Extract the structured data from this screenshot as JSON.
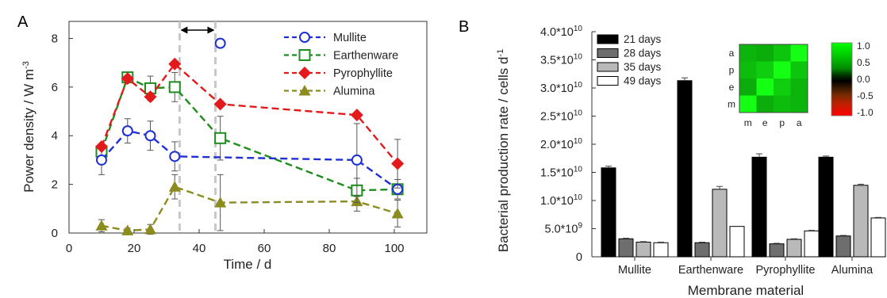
{
  "figure": {
    "panel_a_letter": "A",
    "panel_b_letter": "B"
  },
  "chart_data": [
    {
      "type": "line",
      "panel": "A",
      "xlabel": "Time / d",
      "ylabel_main": "Power density / W m",
      "ylabel_exp": "-3",
      "xlim": [
        0,
        110
      ],
      "ylim": [
        0,
        8.7
      ],
      "xticks": [
        "0",
        "20",
        "40",
        "60",
        "80",
        "100"
      ],
      "yticks": [
        "0",
        "2",
        "4",
        "6",
        "8"
      ],
      "vlines_x": [
        34,
        45
      ],
      "legend_position": "top-right",
      "series": [
        {
          "name": "Mullite",
          "color": "#1f2fd6",
          "marker": "circle",
          "x": [
            10,
            18,
            25,
            32.5,
            46.5,
            88.5,
            101
          ],
          "y": [
            3.0,
            4.2,
            4.0,
            3.15,
            7.8,
            3.0,
            1.8
          ],
          "err": [
            0.6,
            0.5,
            0.6,
            0.6,
            0,
            1.5,
            0.2
          ],
          "connect_to": [
            0,
            1,
            2,
            3,
            null,
            5,
            6
          ],
          "path_x": [
            10,
            18,
            25,
            32.5,
            88.5,
            101
          ],
          "path_y": [
            3.0,
            4.2,
            4.0,
            3.15,
            3.0,
            1.8
          ]
        },
        {
          "name": "Earthenware",
          "color": "#1e8c1e",
          "marker": "square",
          "x": [
            10,
            18,
            25,
            32.5,
            46.5,
            88.5,
            101
          ],
          "y": [
            3.35,
            6.4,
            5.95,
            6.0,
            3.9,
            1.75,
            1.8
          ],
          "err": [
            0.3,
            0.2,
            0.5,
            0.6,
            0.9,
            0.5,
            0.4
          ]
        },
        {
          "name": "Pyrophyllite",
          "color": "#e31a1c",
          "marker": "diamond",
          "x": [
            10,
            18,
            25,
            32.5,
            46.5,
            88.5,
            101
          ],
          "y": [
            3.55,
            6.35,
            5.6,
            6.95,
            5.3,
            4.85,
            2.85
          ],
          "err": [
            0,
            0,
            0,
            0,
            0,
            0,
            1.0
          ]
        },
        {
          "name": "Alumina",
          "color": "#8b8b1e",
          "marker": "triangle",
          "x": [
            10,
            18,
            25,
            32.5,
            46.5,
            88.5,
            101
          ],
          "y": [
            0.3,
            0.1,
            0.15,
            1.9,
            1.25,
            1.3,
            0.8
          ],
          "err": [
            0.25,
            0.1,
            0.2,
            0.5,
            1.15,
            0.4,
            0.55
          ]
        }
      ]
    },
    {
      "type": "bar",
      "panel": "B",
      "xlabel": "Membrane material",
      "ylabel_main": "Bacterial production rate / cells d",
      "ylabel_exp": "-1",
      "ylim": [
        0,
        40000000000.0
      ],
      "yticks": [
        {
          "base": "0",
          "exp": ""
        },
        {
          "base": "5.0*10",
          "exp": "9"
        },
        {
          "base": "1.0*10",
          "exp": "10"
        },
        {
          "base": "1.5*10",
          "exp": "10"
        },
        {
          "base": "2.0*10",
          "exp": "10"
        },
        {
          "base": "2.5*10",
          "exp": "10"
        },
        {
          "base": "3.0*10",
          "exp": "10"
        },
        {
          "base": "3.5*10",
          "exp": "10"
        },
        {
          "base": "4.0*10",
          "exp": "10"
        }
      ],
      "categories": [
        "Mullite",
        "Earthenware",
        "Pyrophyllite",
        "Alumina"
      ],
      "legend_position": "top-left",
      "series": [
        {
          "name": "21 days",
          "color": "#000000",
          "values": [
            15800000000.0,
            31300000000.0,
            17700000000.0,
            17700000000.0
          ],
          "err": [
            300000000.0,
            500000000.0,
            600000000.0,
            200000000.0
          ]
        },
        {
          "name": "28 days",
          "color": "#6e6e6e",
          "values": [
            3200000000.0,
            2500000000.0,
            2300000000.0,
            3700000000.0
          ],
          "err": [
            100000000.0,
            100000000.0,
            100000000.0,
            100000000.0
          ]
        },
        {
          "name": "35 days",
          "color": "#b9b9b9",
          "values": [
            2600000000.0,
            12000000000.0,
            3100000000.0,
            12700000000.0
          ],
          "err": [
            100000000.0,
            500000000.0,
            100000000.0,
            200000000.0
          ]
        },
        {
          "name": "49 days",
          "color": "#ffffff",
          "values": [
            2500000000.0,
            5400000000.0,
            4600000000.0,
            6900000000.0
          ],
          "err": [
            100000000.0,
            0.0,
            100000000.0,
            100000000.0
          ]
        }
      ],
      "heatmap": {
        "row_labels": [
          "a",
          "p",
          "e",
          "m"
        ],
        "col_labels": [
          "m",
          "e",
          "p",
          "a"
        ],
        "values": [
          [
            0.55,
            0.5,
            0.65,
            1.0
          ],
          [
            0.6,
            0.7,
            1.0,
            0.65
          ],
          [
            0.5,
            1.0,
            0.7,
            0.55
          ],
          [
            1.0,
            0.5,
            0.6,
            0.55
          ]
        ],
        "colorbar_ticks": [
          "1.0",
          "0.5",
          "0.0",
          "-0.5",
          "-1.0"
        ]
      }
    }
  ]
}
